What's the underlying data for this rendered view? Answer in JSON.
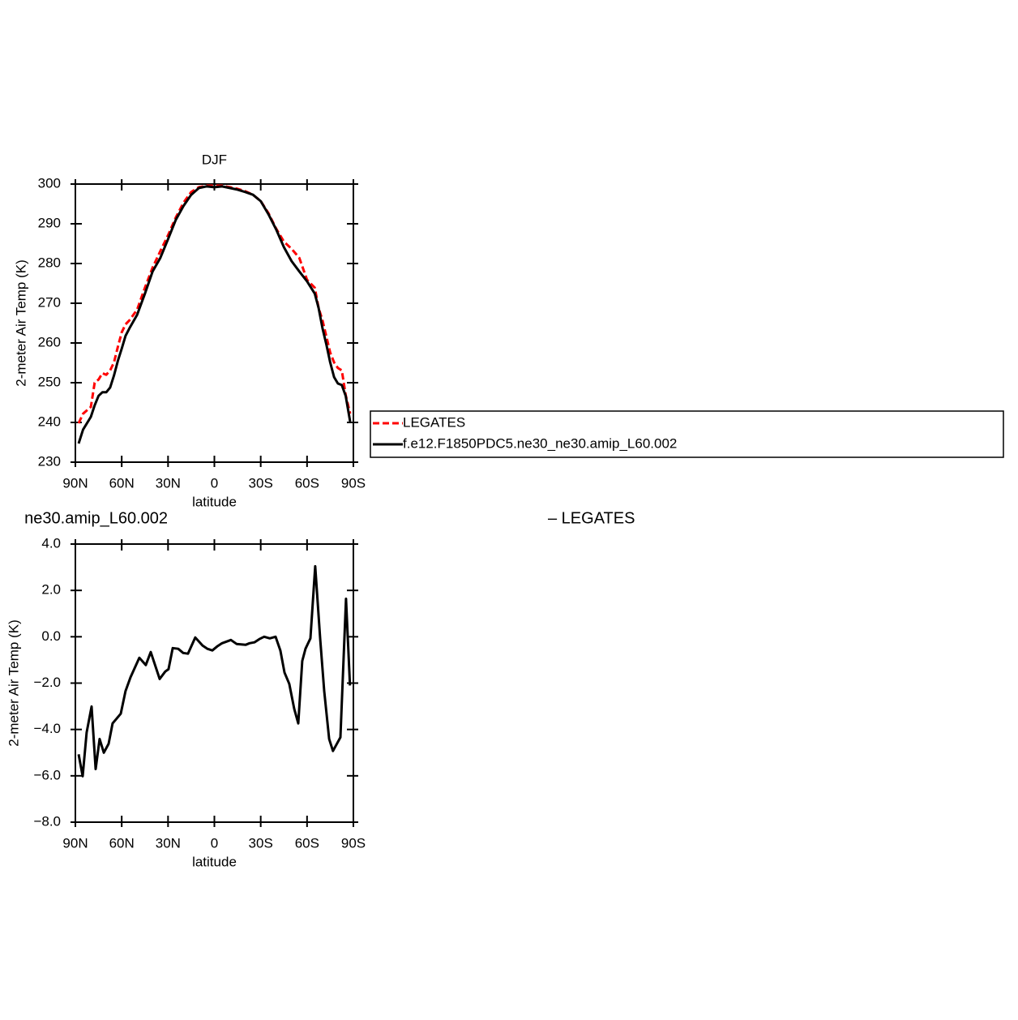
{
  "chart_data": [
    {
      "type": "line",
      "title": "DJF",
      "xlabel": "latitude",
      "ylabel": "2-meter Air Temp (K)",
      "x": [
        87.9,
        85,
        80,
        77.5,
        75,
        72.5,
        70,
        67.5,
        65,
        62.5,
        60,
        57.5,
        55,
        50,
        45,
        40,
        35,
        30,
        25,
        20,
        15,
        10,
        5,
        0,
        -5,
        -10,
        -15,
        -20,
        -25,
        -30,
        -35,
        -40,
        -45,
        -50,
        -55,
        -60,
        -65,
        -67.5,
        -70,
        -72.5,
        -75,
        -77.5,
        -80,
        -82.5,
        -85,
        -87.9
      ],
      "xlim": [
        90,
        -90
      ],
      "xticks": [
        {
          "value": 90,
          "label": "90N"
        },
        {
          "value": 60,
          "label": "60N"
        },
        {
          "value": 30,
          "label": "30N"
        },
        0,
        {
          "value": -30,
          "label": "30S"
        },
        {
          "value": -60,
          "label": "60S"
        },
        {
          "value": -90,
          "label": "90S"
        }
      ],
      "ylim": [
        230,
        300
      ],
      "yticks": [
        230,
        240,
        250,
        260,
        270,
        280,
        290,
        300
      ],
      "legend": "right",
      "series": [
        {
          "name": "LEGATES",
          "color": "#ff0000",
          "dash": true,
          "values": [
            239.8,
            242.2,
            243.9,
            250.0,
            250.8,
            252.4,
            252.0,
            253.1,
            255.1,
            259.0,
            262.7,
            264.7,
            265.7,
            268.4,
            273.9,
            279.0,
            283.1,
            287.1,
            291.6,
            295.3,
            298.0,
            299.2,
            299.6,
            299.6,
            299.6,
            299.2,
            298.8,
            298.2,
            297.3,
            295.7,
            292.7,
            288.8,
            285.5,
            283.7,
            281.4,
            275.9,
            273.9,
            268.8,
            265.7,
            261.6,
            257.6,
            255.1,
            253.7,
            253.1,
            246.9,
            242.2
          ]
        },
        {
          "name": "f.e12.F1850PDC5.ne30_ne30.amip_L60.002",
          "color": "#000000",
          "values": [
            234.7,
            238.2,
            241.4,
            244.3,
            246.7,
            247.6,
            247.6,
            248.8,
            251.8,
            255.5,
            258.6,
            261.8,
            263.7,
            267.1,
            272.4,
            278.0,
            281.4,
            286.1,
            291.0,
            294.5,
            297.3,
            299.0,
            299.4,
            299.2,
            299.4,
            299.0,
            298.6,
            298.0,
            297.3,
            295.7,
            292.4,
            288.6,
            284.1,
            280.6,
            278.0,
            275.5,
            272.4,
            268.8,
            263.7,
            259.6,
            255.1,
            251.4,
            249.8,
            249.4,
            246.7,
            240.2
          ]
        }
      ]
    },
    {
      "type": "line",
      "left_string": "ne30.amip_L60.002",
      "right_string": "– LEGATES",
      "xlabel": "latitude",
      "ylabel": "2-meter Air Temp (K)",
      "color": "#000000",
      "x": [
        87.9,
        85.3,
        82.7,
        79.5,
        76.9,
        74.3,
        71.6,
        68.5,
        65.9,
        60.6,
        57.5,
        54.3,
        48.6,
        44.4,
        41.2,
        35.4,
        31.8,
        29.7,
        27.0,
        23.4,
        20.2,
        17.1,
        12.4,
        7.6,
        4.5,
        1.3,
        -1.8,
        -5.0,
        -10.7,
        -14.4,
        -20.2,
        -22.8,
        -25.9,
        -29.1,
        -32.2,
        -35.9,
        -39.6,
        -42.7,
        -45.4,
        -48.5,
        -51.7,
        -54.3,
        -56.9,
        -59.0,
        -62.2,
        -65.3,
        -68.5,
        -71.1,
        -74.3,
        -76.8,
        -81.6,
        -85.2,
        -87.8
      ],
      "values": [
        -5.07,
        -6.02,
        -4.13,
        -3.01,
        -5.71,
        -4.41,
        -5.0,
        -4.62,
        -3.74,
        -3.32,
        -2.34,
        -1.75,
        -0.91,
        -1.22,
        -0.66,
        -1.82,
        -1.5,
        -1.4,
        -0.49,
        -0.52,
        -0.7,
        -0.73,
        -0.03,
        -0.38,
        -0.52,
        -0.59,
        -0.42,
        -0.28,
        -0.14,
        -0.31,
        -0.35,
        -0.28,
        -0.24,
        -0.1,
        0,
        -0.07,
        0,
        -0.59,
        -1.54,
        -2.03,
        -3.11,
        -3.74,
        -1.05,
        -0.52,
        -0.07,
        3.04,
        -0.07,
        -2.34,
        -4.41,
        -4.93,
        -4.34,
        1.64,
        -2.1
      ],
      "xlim": [
        90,
        -90
      ],
      "xticks": [
        {
          "value": 90,
          "label": "90N"
        },
        {
          "value": 60,
          "label": "60N"
        },
        {
          "value": 30,
          "label": "30N"
        },
        0,
        {
          "value": -30,
          "label": "30S"
        },
        {
          "value": -60,
          "label": "60S"
        },
        {
          "value": -90,
          "label": "90S"
        }
      ],
      "ylim": [
        -8,
        4
      ],
      "yticks": [
        {
          "value": -8,
          "label": "−8.0"
        },
        {
          "value": -6,
          "label": "−6.0"
        },
        {
          "value": -4,
          "label": "−4.0"
        },
        {
          "value": -2,
          "label": "−2.0"
        },
        {
          "value": 0,
          "label": "0.0"
        },
        {
          "value": 2,
          "label": "2.0"
        },
        {
          "value": 4,
          "label": "4.0"
        }
      ]
    }
  ]
}
